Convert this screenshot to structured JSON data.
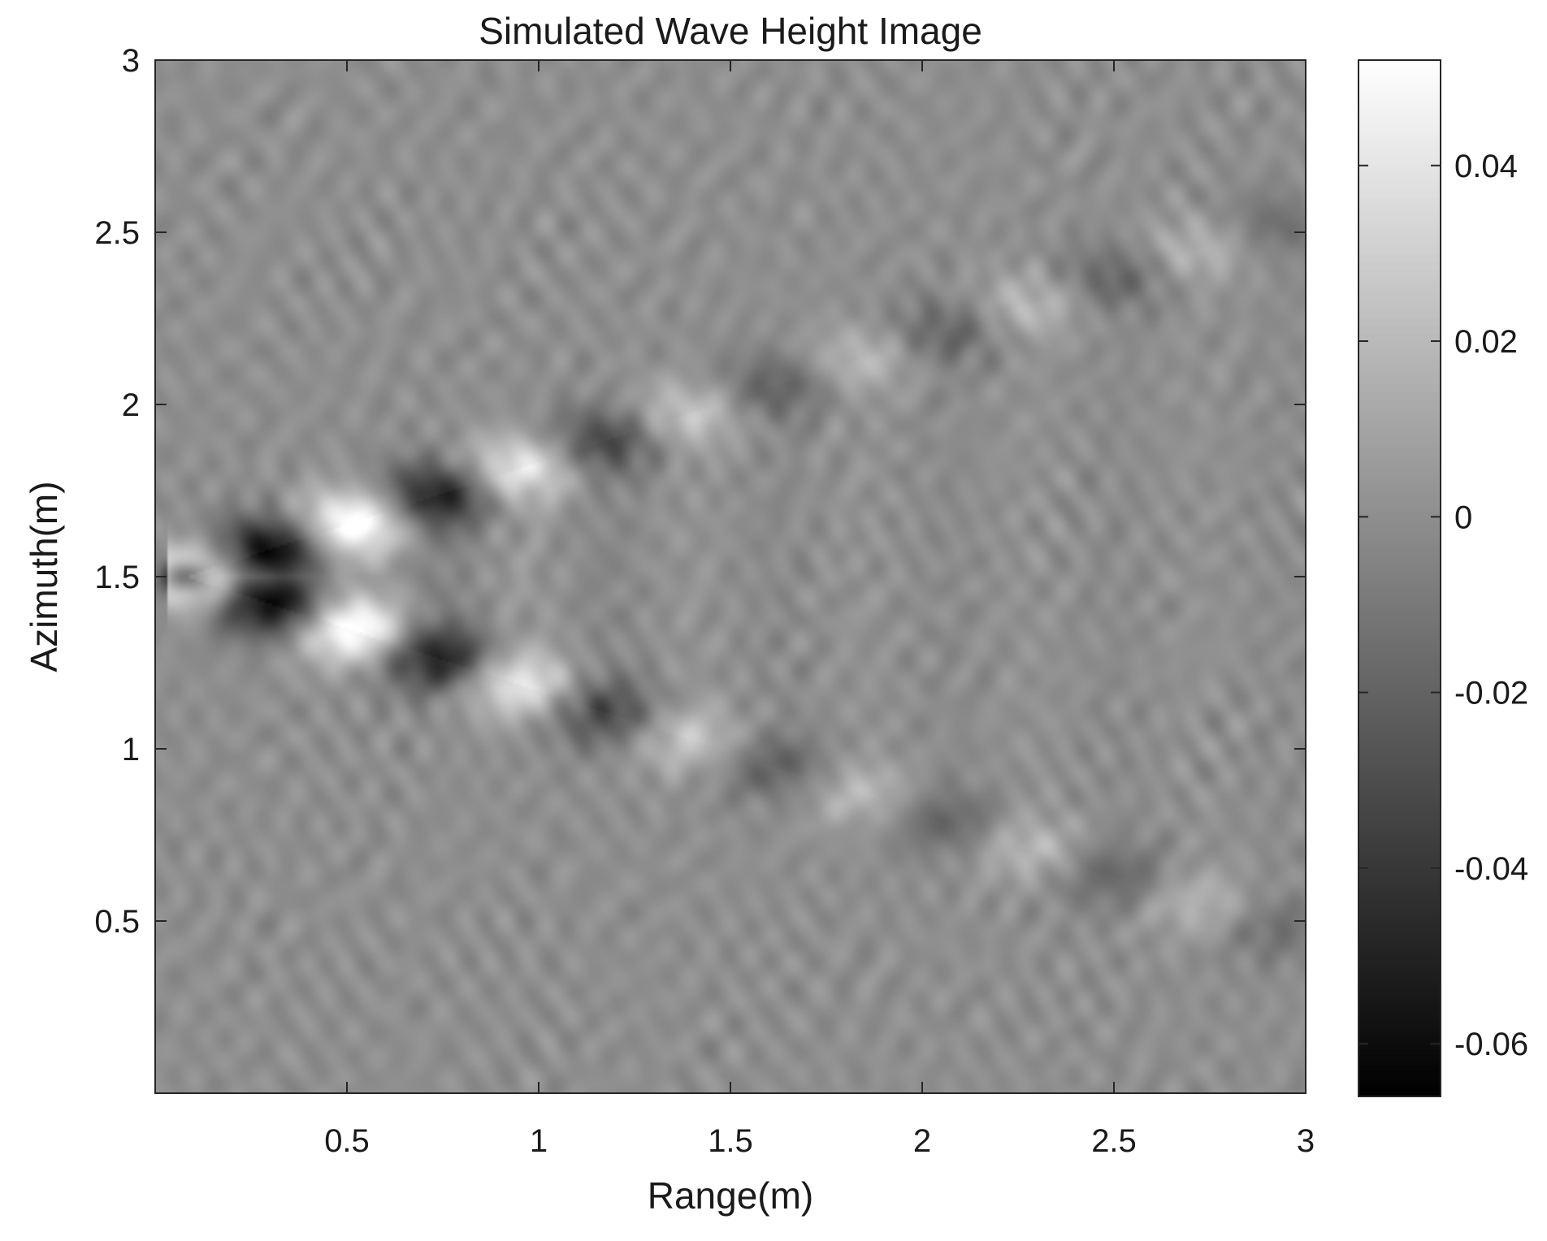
{
  "chart_data": {
    "type": "heatmap",
    "title": "Simulated Wave Height Image",
    "xlabel": "Range(m)",
    "ylabel": "Azimuth(m)",
    "xlim": [
      0,
      3
    ],
    "ylim": [
      0,
      3
    ],
    "xticks": [
      0.5,
      1,
      1.5,
      2,
      2.5,
      3
    ],
    "xtick_labels": [
      "0.5",
      "1",
      "1.5",
      "2",
      "2.5",
      "3"
    ],
    "yticks": [
      0.5,
      1,
      1.5,
      2,
      2.5,
      3
    ],
    "ytick_labels": [
      "0.5",
      "1",
      "1.5",
      "2",
      "2.5",
      "3"
    ],
    "colormap": "gray",
    "colorbar": {
      "range": [
        -0.066,
        0.052
      ],
      "ticks": [
        0.04,
        0.02,
        0,
        -0.02,
        -0.04,
        -0.06
      ],
      "tick_labels": [
        "0.04",
        "0.02",
        "0",
        "-0.02",
        "-0.04",
        "-0.06"
      ]
    },
    "pattern": {
      "description_values": {
        "apex_range": 0.08,
        "apex_azimuth": 1.5,
        "arm_slope_azimuth_per_range": 0.36,
        "crest_wavelength_range": 0.44,
        "amplitude_peak": -0.066,
        "amplitude_mid": 0.03,
        "background_std": 0.008
      }
    }
  }
}
